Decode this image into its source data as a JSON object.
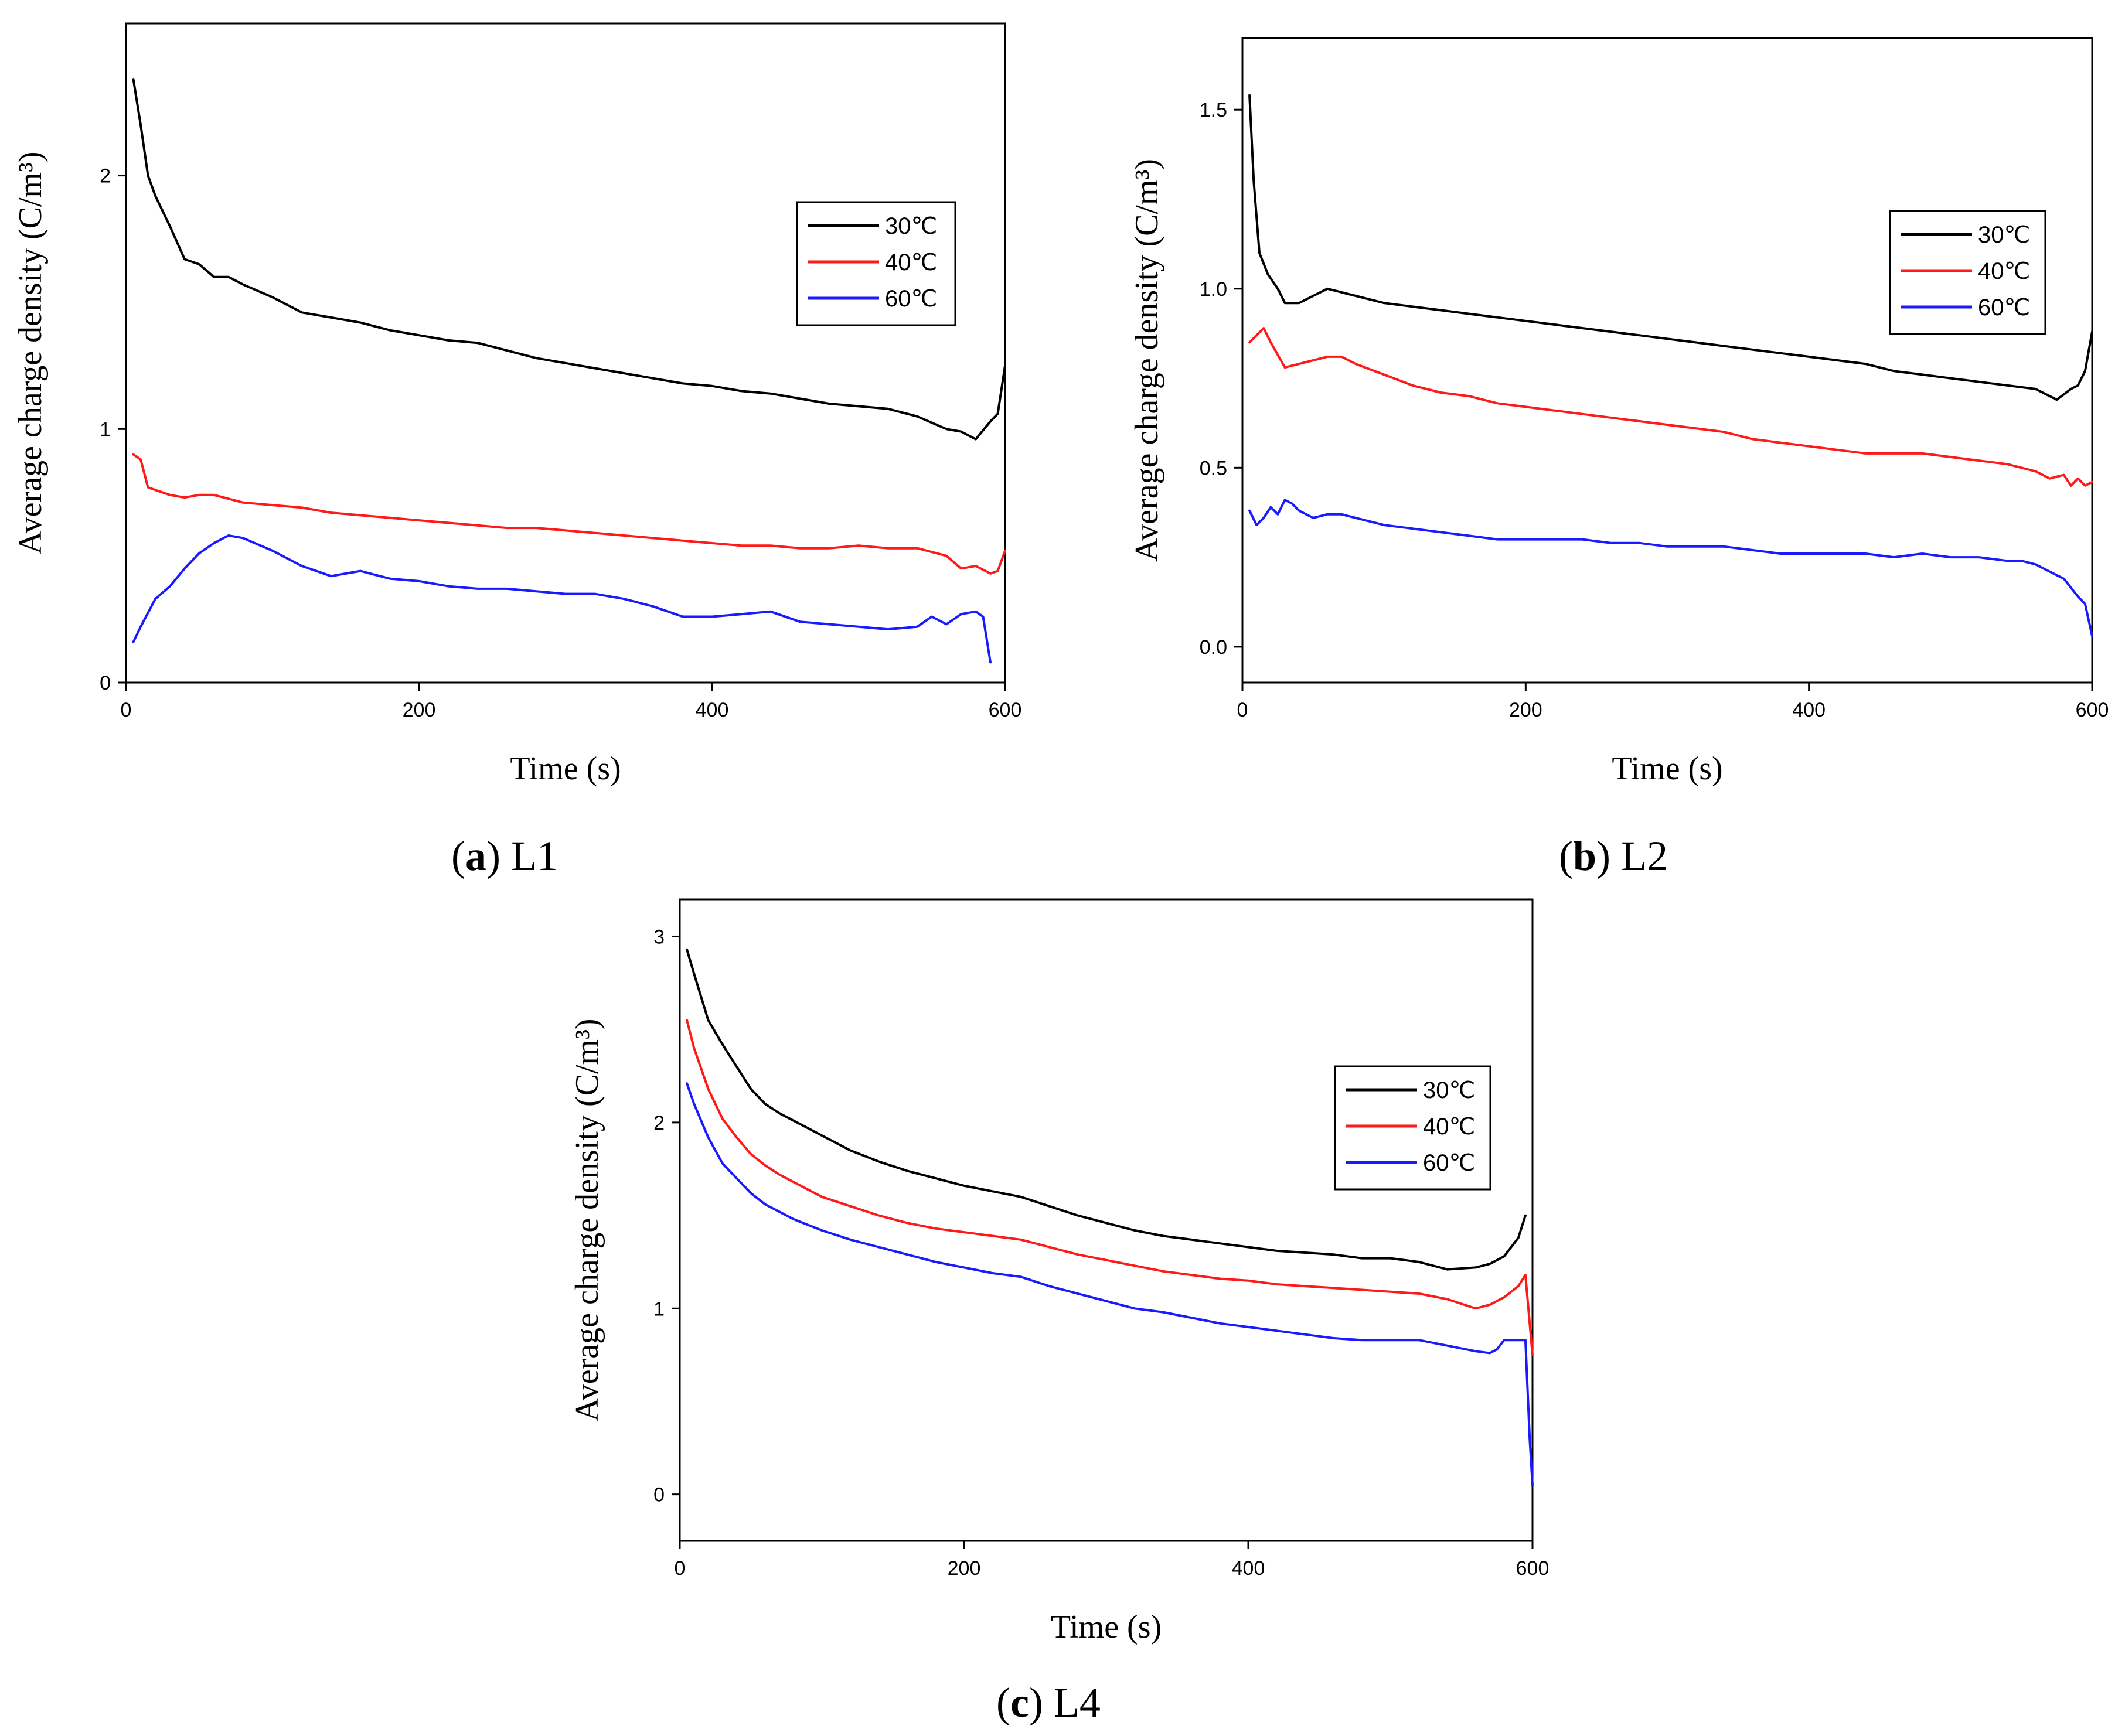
{
  "figure": {
    "legend_labels": [
      "30℃",
      "40℃",
      "60℃"
    ],
    "colors": {
      "30℃": "#000000",
      "40℃": "#ff1a1a",
      "60℃": "#1a1aff"
    }
  },
  "chart_data": [
    {
      "type": "line",
      "caption_letter": "a",
      "caption_text": ") L1",
      "caption_open": "(",
      "xlabel": "Time (s)",
      "ylabel": "Average charge density (C/m³)",
      "xlim": [
        0,
        600
      ],
      "ylim": [
        0,
        2.6
      ],
      "xticks": [
        0,
        200,
        400,
        600
      ],
      "xtick_labels": [
        "0",
        "200",
        "400",
        "600"
      ],
      "yticks": [
        0,
        1,
        2
      ],
      "ytick_labels": [
        "0",
        "1",
        "2"
      ],
      "legend_position": "right-middle",
      "series": [
        {
          "name": "30℃",
          "x": [
            5,
            10,
            15,
            20,
            30,
            40,
            50,
            60,
            70,
            80,
            100,
            120,
            140,
            160,
            180,
            200,
            220,
            240,
            260,
            280,
            300,
            320,
            340,
            360,
            380,
            400,
            420,
            440,
            460,
            480,
            500,
            520,
            540,
            560,
            570,
            580,
            590,
            595,
            600
          ],
          "y": [
            2.38,
            2.2,
            2.0,
            1.92,
            1.8,
            1.67,
            1.65,
            1.6,
            1.6,
            1.57,
            1.52,
            1.46,
            1.44,
            1.42,
            1.39,
            1.37,
            1.35,
            1.34,
            1.31,
            1.28,
            1.26,
            1.24,
            1.22,
            1.2,
            1.18,
            1.17,
            1.15,
            1.14,
            1.12,
            1.1,
            1.09,
            1.08,
            1.05,
            1.0,
            0.99,
            0.96,
            1.03,
            1.06,
            1.25
          ]
        },
        {
          "name": "40℃",
          "x": [
            5,
            10,
            15,
            20,
            30,
            40,
            50,
            60,
            80,
            100,
            120,
            140,
            160,
            180,
            200,
            220,
            240,
            260,
            280,
            300,
            320,
            340,
            360,
            380,
            400,
            420,
            440,
            460,
            480,
            500,
            520,
            540,
            560,
            570,
            580,
            590,
            595,
            600
          ],
          "y": [
            0.9,
            0.88,
            0.77,
            0.76,
            0.74,
            0.73,
            0.74,
            0.74,
            0.71,
            0.7,
            0.69,
            0.67,
            0.66,
            0.65,
            0.64,
            0.63,
            0.62,
            0.61,
            0.61,
            0.6,
            0.59,
            0.58,
            0.57,
            0.56,
            0.55,
            0.54,
            0.54,
            0.53,
            0.53,
            0.54,
            0.53,
            0.53,
            0.5,
            0.45,
            0.46,
            0.43,
            0.44,
            0.52
          ]
        },
        {
          "name": "60℃",
          "x": [
            5,
            10,
            20,
            30,
            40,
            50,
            60,
            70,
            80,
            100,
            120,
            140,
            150,
            160,
            180,
            200,
            220,
            240,
            260,
            280,
            300,
            320,
            340,
            360,
            380,
            400,
            420,
            440,
            460,
            480,
            500,
            520,
            540,
            550,
            560,
            570,
            580,
            585,
            590
          ],
          "y": [
            0.16,
            0.22,
            0.33,
            0.38,
            0.45,
            0.51,
            0.55,
            0.58,
            0.57,
            0.52,
            0.46,
            0.42,
            0.43,
            0.44,
            0.41,
            0.4,
            0.38,
            0.37,
            0.37,
            0.36,
            0.35,
            0.35,
            0.33,
            0.3,
            0.26,
            0.26,
            0.27,
            0.28,
            0.24,
            0.23,
            0.22,
            0.21,
            0.22,
            0.26,
            0.23,
            0.27,
            0.28,
            0.26,
            0.08
          ]
        }
      ]
    },
    {
      "type": "line",
      "caption_letter": "b",
      "caption_text": ") L2",
      "caption_open": "(",
      "xlabel": "Time (s)",
      "ylabel": "Average charge density (C/m³)",
      "xlim": [
        0,
        600
      ],
      "ylim": [
        -0.1,
        1.7
      ],
      "xticks": [
        0,
        200,
        400,
        600
      ],
      "xtick_labels": [
        "0",
        "200",
        "400",
        "600"
      ],
      "yticks": [
        0,
        0.5,
        1.0,
        1.5
      ],
      "ytick_labels": [
        "0.0",
        "0.5",
        "1.0",
        "1.5"
      ],
      "legend_position": "right-middle",
      "series": [
        {
          "name": "30℃",
          "x": [
            5,
            8,
            12,
            18,
            25,
            30,
            40,
            50,
            60,
            70,
            80,
            100,
            120,
            140,
            160,
            180,
            200,
            220,
            240,
            260,
            280,
            300,
            320,
            340,
            360,
            380,
            400,
            420,
            440,
            460,
            480,
            500,
            520,
            540,
            560,
            575,
            585,
            590,
            595,
            600
          ],
          "y": [
            1.54,
            1.3,
            1.1,
            1.04,
            1.0,
            0.96,
            0.96,
            0.98,
            1.0,
            0.99,
            0.98,
            0.96,
            0.95,
            0.94,
            0.93,
            0.92,
            0.91,
            0.9,
            0.89,
            0.88,
            0.87,
            0.86,
            0.85,
            0.84,
            0.83,
            0.82,
            0.81,
            0.8,
            0.79,
            0.77,
            0.76,
            0.75,
            0.74,
            0.73,
            0.72,
            0.69,
            0.72,
            0.73,
            0.77,
            0.88
          ]
        },
        {
          "name": "40℃",
          "x": [
            5,
            10,
            15,
            20,
            30,
            40,
            50,
            60,
            70,
            80,
            100,
            120,
            140,
            160,
            180,
            200,
            220,
            240,
            260,
            280,
            300,
            320,
            340,
            360,
            380,
            400,
            420,
            440,
            460,
            480,
            500,
            520,
            540,
            560,
            570,
            580,
            585,
            590,
            595,
            600
          ],
          "y": [
            0.85,
            0.87,
            0.89,
            0.85,
            0.78,
            0.79,
            0.8,
            0.81,
            0.81,
            0.79,
            0.76,
            0.73,
            0.71,
            0.7,
            0.68,
            0.67,
            0.66,
            0.65,
            0.64,
            0.63,
            0.62,
            0.61,
            0.6,
            0.58,
            0.57,
            0.56,
            0.55,
            0.54,
            0.54,
            0.54,
            0.53,
            0.52,
            0.51,
            0.49,
            0.47,
            0.48,
            0.45,
            0.47,
            0.45,
            0.46
          ]
        },
        {
          "name": "60℃",
          "x": [
            5,
            10,
            15,
            20,
            25,
            30,
            35,
            40,
            50,
            60,
            70,
            80,
            100,
            120,
            140,
            160,
            180,
            200,
            220,
            240,
            260,
            280,
            300,
            320,
            340,
            360,
            380,
            400,
            420,
            440,
            460,
            480,
            500,
            520,
            540,
            550,
            560,
            570,
            580,
            590,
            595,
            600
          ],
          "y": [
            0.38,
            0.34,
            0.36,
            0.39,
            0.37,
            0.41,
            0.4,
            0.38,
            0.36,
            0.37,
            0.37,
            0.36,
            0.34,
            0.33,
            0.32,
            0.31,
            0.3,
            0.3,
            0.3,
            0.3,
            0.29,
            0.29,
            0.28,
            0.28,
            0.28,
            0.27,
            0.26,
            0.26,
            0.26,
            0.26,
            0.25,
            0.26,
            0.25,
            0.25,
            0.24,
            0.24,
            0.23,
            0.21,
            0.19,
            0.14,
            0.12,
            0.03
          ]
        }
      ]
    },
    {
      "type": "line",
      "caption_letter": "c",
      "caption_text": ") L4",
      "caption_open": "(",
      "xlabel": "Time (s)",
      "ylabel": "Average charge density (C/m³)",
      "xlim": [
        0,
        600
      ],
      "ylim": [
        -0.25,
        3.2
      ],
      "xticks": [
        0,
        200,
        400,
        600
      ],
      "xtick_labels": [
        "0",
        "200",
        "400",
        "600"
      ],
      "yticks": [
        0,
        1,
        2,
        3
      ],
      "ytick_labels": [
        "0",
        "1",
        "2",
        "3"
      ],
      "legend_position": "right-middle",
      "series": [
        {
          "name": "30℃",
          "x": [
            5,
            10,
            20,
            30,
            40,
            50,
            60,
            70,
            80,
            100,
            120,
            140,
            160,
            180,
            200,
            220,
            240,
            260,
            280,
            300,
            320,
            340,
            360,
            380,
            400,
            420,
            440,
            460,
            480,
            500,
            520,
            540,
            560,
            570,
            580,
            590,
            595
          ],
          "y": [
            2.93,
            2.8,
            2.55,
            2.42,
            2.3,
            2.18,
            2.1,
            2.05,
            2.01,
            1.93,
            1.85,
            1.79,
            1.74,
            1.7,
            1.66,
            1.63,
            1.6,
            1.55,
            1.5,
            1.46,
            1.42,
            1.39,
            1.37,
            1.35,
            1.33,
            1.31,
            1.3,
            1.29,
            1.27,
            1.27,
            1.25,
            1.21,
            1.22,
            1.24,
            1.28,
            1.38,
            1.5
          ]
        },
        {
          "name": "40℃",
          "x": [
            5,
            10,
            20,
            30,
            40,
            50,
            60,
            70,
            80,
            100,
            120,
            140,
            160,
            180,
            200,
            220,
            240,
            260,
            280,
            300,
            320,
            340,
            360,
            380,
            400,
            420,
            440,
            460,
            480,
            500,
            520,
            540,
            560,
            570,
            580,
            590,
            595,
            600
          ],
          "y": [
            2.55,
            2.4,
            2.18,
            2.02,
            1.92,
            1.83,
            1.77,
            1.72,
            1.68,
            1.6,
            1.55,
            1.5,
            1.46,
            1.43,
            1.41,
            1.39,
            1.37,
            1.33,
            1.29,
            1.26,
            1.23,
            1.2,
            1.18,
            1.16,
            1.15,
            1.13,
            1.12,
            1.11,
            1.1,
            1.09,
            1.08,
            1.05,
            1.0,
            1.02,
            1.06,
            1.12,
            1.18,
            0.75
          ]
        },
        {
          "name": "60℃",
          "x": [
            5,
            10,
            20,
            30,
            40,
            50,
            60,
            70,
            80,
            100,
            120,
            140,
            160,
            180,
            200,
            220,
            240,
            260,
            280,
            300,
            320,
            340,
            360,
            380,
            400,
            420,
            440,
            460,
            480,
            500,
            520,
            540,
            560,
            570,
            575,
            580,
            590,
            595,
            598,
            600
          ],
          "y": [
            2.21,
            2.1,
            1.92,
            1.78,
            1.7,
            1.62,
            1.56,
            1.52,
            1.48,
            1.42,
            1.37,
            1.33,
            1.29,
            1.25,
            1.22,
            1.19,
            1.17,
            1.12,
            1.08,
            1.04,
            1.0,
            0.98,
            0.95,
            0.92,
            0.9,
            0.88,
            0.86,
            0.84,
            0.83,
            0.83,
            0.83,
            0.8,
            0.77,
            0.76,
            0.78,
            0.83,
            0.83,
            0.83,
            0.3,
            0.05
          ]
        }
      ]
    }
  ]
}
